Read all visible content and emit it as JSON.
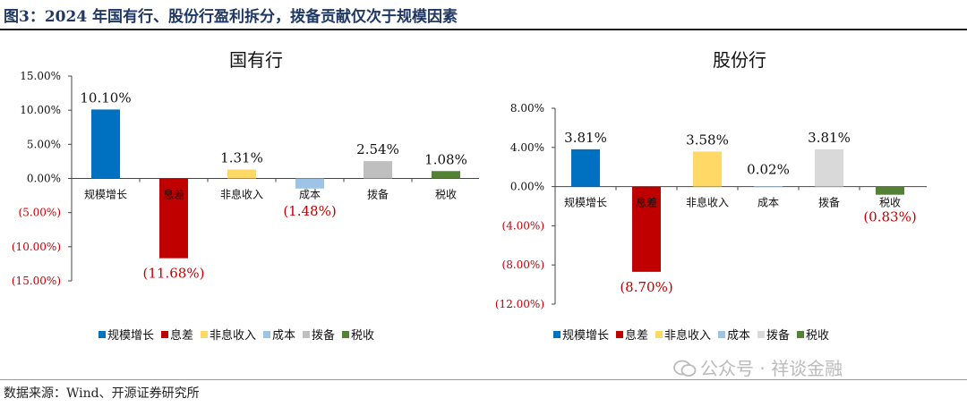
{
  "page": {
    "figure_title": "图3：2024 年国有行、股份行盈利拆分，拨备贡献仅次于规模因素",
    "source": "数据来源：Wind、开源证券研究所",
    "watermark": "公众号 · 祥谈金融"
  },
  "chart_data": [
    {
      "type": "bar",
      "title": "国有行",
      "categories": [
        "规模增长",
        "息差",
        "非息收入",
        "成本",
        "拨备",
        "税收"
      ],
      "values": [
        10.1,
        -11.68,
        1.31,
        -1.48,
        2.54,
        1.08
      ],
      "value_labels": [
        "10.10%",
        "(11.68%)",
        "1.31%",
        "(1.48%)",
        "2.54%",
        "1.08%"
      ],
      "colors": [
        "#0070c0",
        "#c00000",
        "#ffd966",
        "#9dc3e6",
        "#bfbfbf",
        "#548235"
      ],
      "ylim": [
        -15,
        15
      ],
      "yticks": [
        15,
        10,
        5,
        0,
        -5,
        -10,
        -15
      ],
      "ytick_labels": [
        "15.00%",
        "10.00%",
        "5.00%",
        "0.00%",
        "(5.00%)",
        "(10.00%)",
        "(15.00%)"
      ],
      "legend": [
        "规模增长",
        "息差",
        "非息收入",
        "成本",
        "拨备",
        "税收"
      ],
      "legend_position": "bottom"
    },
    {
      "type": "bar",
      "title": "股份行",
      "categories": [
        "规模增长",
        "息差",
        "非息收入",
        "成本",
        "拨备",
        "税收"
      ],
      "values": [
        3.81,
        -8.7,
        3.58,
        0.02,
        3.81,
        -0.83
      ],
      "value_labels": [
        "3.81%",
        "(8.70%)",
        "3.58%",
        "0.02%",
        "3.81%",
        "(0.83%)"
      ],
      "colors": [
        "#0070c0",
        "#c00000",
        "#ffd966",
        "#9dc3e6",
        "#d9d9d9",
        "#548235"
      ],
      "ylim": [
        -12,
        8
      ],
      "yticks": [
        8,
        4,
        0,
        -4,
        -8,
        -12
      ],
      "ytick_labels": [
        "8.00%",
        "4.00%",
        "0.00%",
        "(4.00%)",
        "(8.00%)",
        "(12.00%)"
      ],
      "legend": [
        "规模增长",
        "息差",
        "非息收入",
        "成本",
        "拨备",
        "税收"
      ],
      "legend_position": "bottom"
    }
  ]
}
